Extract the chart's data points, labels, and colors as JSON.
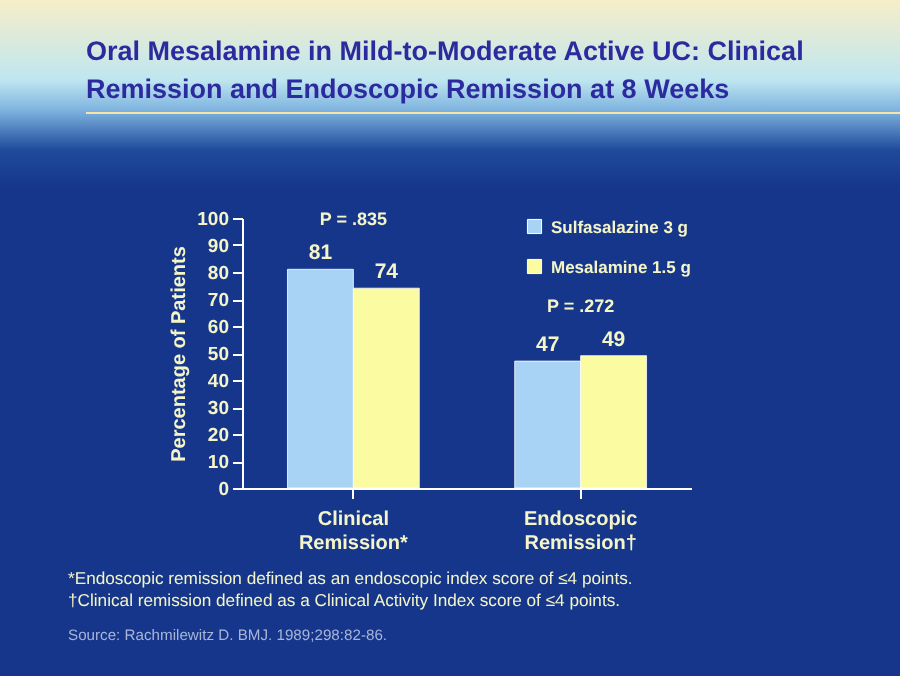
{
  "chart_data": {
    "type": "bar",
    "title": "Oral Mesalamine in Mild-to-Moderate Active UC: Clinical Remission and Endoscopic Remission at 8 Weeks",
    "ylabel": "Percentage of Patients",
    "categories": [
      "Clinical Remission*",
      "Endoscopic Remission†"
    ],
    "series": [
      {
        "name": "Sulfasalazine 3 g",
        "color": "#a9d3f5",
        "values": [
          81,
          47
        ]
      },
      {
        "name": "Mesalamine 1.5 g",
        "color": "#fbfba2",
        "values": [
          74,
          49
        ]
      }
    ],
    "ylim": [
      0,
      100
    ],
    "yticks": [
      0,
      10,
      20,
      30,
      40,
      50,
      60,
      70,
      80,
      90,
      100
    ],
    "data_labels": true,
    "grid": false,
    "legend": "top right",
    "annotations": [
      "P = .835",
      "P = .272",
      "*Endoscopic remission defined as an endoscopic index score of ≤4 points.",
      "†Clinical remission defined as a Clinical Activity Index score of ≤4 points.",
      "Source: Rachmilewitz D. BMJ. 1989;298:82-86."
    ]
  }
}
